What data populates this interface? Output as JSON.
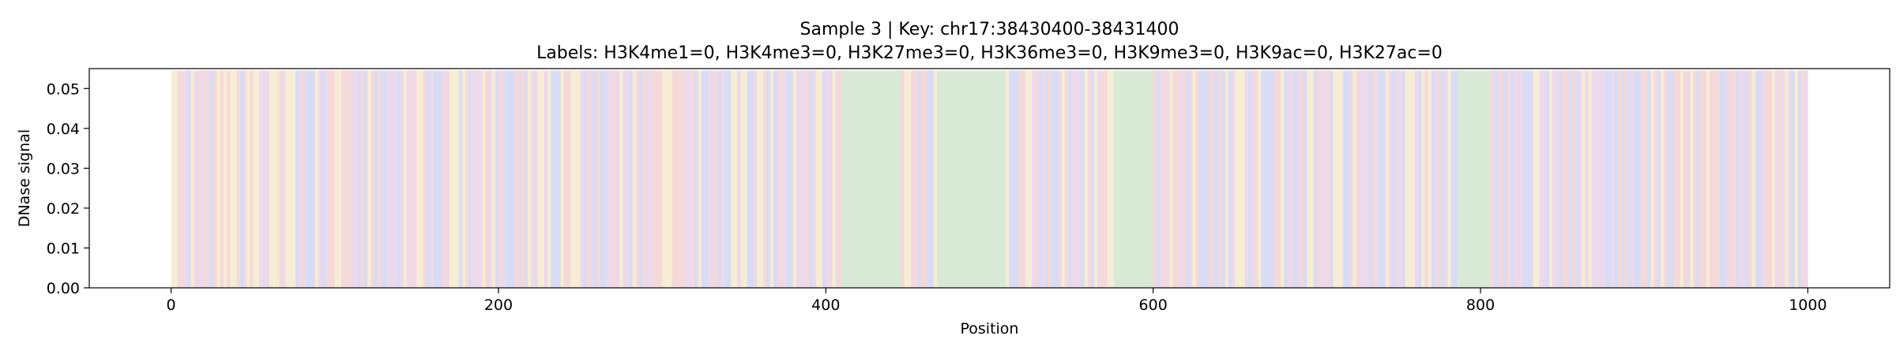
{
  "chart_data": {
    "type": "bar",
    "title": "Sample 3 | Key: chr17:38430400-38431400",
    "subtitle": "Labels: H3K4me1=0, H3K4me3=0, H3K27me3=0, H3K36me3=0, H3K9me3=0, H3K9ac=0, H3K27ac=0",
    "xlabel": "Position",
    "ylabel": "DNase signal",
    "xlim": [
      -50,
      1050
    ],
    "ylim": [
      0,
      0.055
    ],
    "xticks": [
      0,
      200,
      400,
      600,
      800,
      1000
    ],
    "yticks": [
      0.0,
      0.01,
      0.02,
      0.03,
      0.04,
      0.05
    ],
    "xtick_labels": [
      "0",
      "200",
      "400",
      "600",
      "800",
      "1000"
    ],
    "ytick_labels": [
      "0.00",
      "0.01",
      "0.02",
      "0.03",
      "0.04",
      "0.05"
    ],
    "grid": false,
    "background_band_colors": {
      "A": "#f5d9d9",
      "C": "#d9dcf5",
      "G": "#f7ecd4",
      "T": "#ecd9ec",
      "green": "#d8ead6"
    },
    "highlight_regions": [
      {
        "start": 410,
        "end": 445,
        "color": "#d8ead6"
      },
      {
        "start": 467,
        "end": 510,
        "color": "#d8ead6"
      },
      {
        "start": 575,
        "end": 600,
        "color": "#d8ead6"
      },
      {
        "start": 785,
        "end": 806,
        "color": "#d8ead6"
      }
    ],
    "band_range": [
      0,
      1000
    ],
    "series": []
  }
}
